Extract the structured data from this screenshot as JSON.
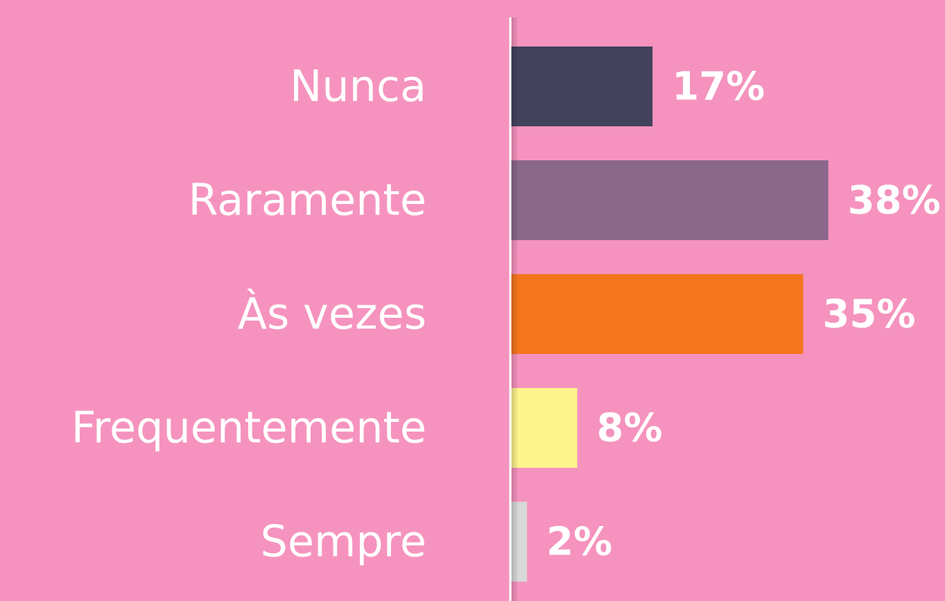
{
  "chart_data": {
    "type": "bar",
    "categories": [
      "Nunca",
      "Raramente",
      "Às vezes",
      "Frequentemente",
      "Sempre"
    ],
    "values": [
      17,
      38,
      35,
      8,
      2
    ],
    "value_labels": [
      "17%",
      "38%",
      "35%",
      "8%",
      "2%"
    ],
    "colors": [
      "#43425d",
      "#8a678b",
      "#f5751d",
      "#fff48c",
      "#d8d8d8"
    ]
  }
}
